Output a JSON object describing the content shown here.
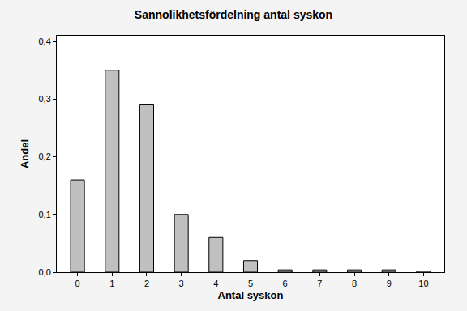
{
  "chart_data": {
    "type": "bar",
    "title": "Sannolikhetsfördelning antal syskon",
    "x_label": "Antal syskon",
    "y_label": "Andel",
    "categories": [
      "0",
      "1",
      "2",
      "3",
      "4",
      "5",
      "6",
      "7",
      "8",
      "9",
      "10"
    ],
    "values": [
      0.16,
      0.35,
      0.29,
      0.1,
      0.06,
      0.02,
      0.004,
      0.004,
      0.004,
      0.004,
      0.002
    ],
    "color": "#c0c0c0",
    "ylim": [
      0,
      0.41
    ],
    "yticks": [
      {
        "value": 0,
        "label": "0,0"
      },
      {
        "value": 0.1,
        "label": "0,1"
      },
      {
        "value": 0.2,
        "label": "0,2"
      },
      {
        "value": 0.3,
        "label": "0,3"
      },
      {
        "value": 0.4,
        "label": "0,4"
      }
    ],
    "grid": false
  }
}
